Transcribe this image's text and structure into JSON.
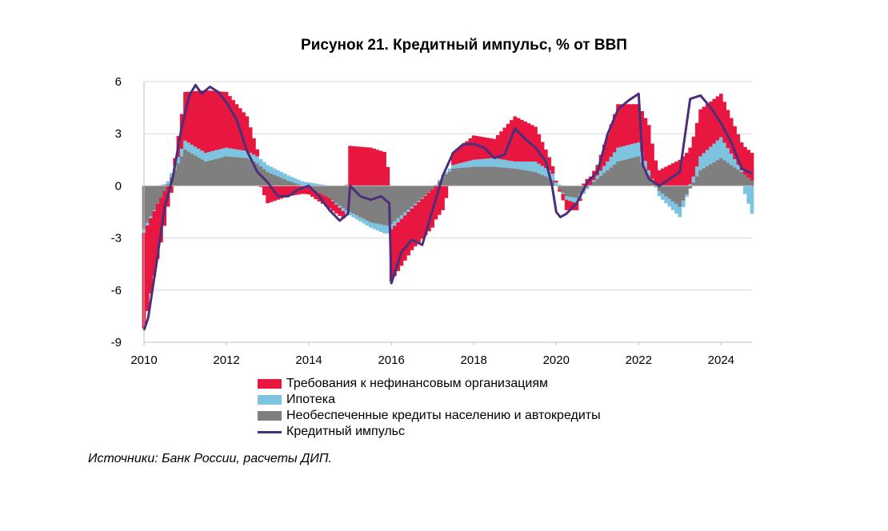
{
  "chart_data": {
    "type": "bar",
    "title": "Рисунок 21. Кредитный импульс, % от ВВП",
    "xlabel": "",
    "ylabel": "",
    "ylim": [
      -9,
      6
    ],
    "yticks": [
      "6",
      "3",
      "0",
      "-3",
      "-6",
      "-9"
    ],
    "xticks": [
      "2010",
      "2012",
      "2014",
      "2016",
      "2018",
      "2020",
      "2022",
      "2024"
    ],
    "x_range": [
      2010.0,
      2024.75
    ],
    "grid": "horizontal",
    "legend_position": "bottom",
    "colors": {
      "corporate": "#e8173f",
      "mortgage": "#7cc4e0",
      "unsecured": "#7f7f7f",
      "impulse": "#4b2f7a",
      "grid": "#d9d9d9"
    },
    "series": [
      {
        "name": "Требования к нефинансовым организациям",
        "kind": "bar",
        "x": [
          2010.0,
          2010.5,
          2011.0,
          2011.5,
          2012.0,
          2012.5,
          2012.75,
          2013.0,
          2013.5,
          2014.0,
          2014.5,
          2014.9,
          2015.0,
          2015.5,
          2015.9,
          2016.0,
          2016.5,
          2017.0,
          2017.25,
          2017.5,
          2018.0,
          2018.5,
          2019.0,
          2019.5,
          2019.9,
          2020.0,
          2020.25,
          2020.5,
          2020.75,
          2021.0,
          2021.5,
          2022.0,
          2022.25,
          2022.5,
          2023.0,
          2023.5,
          2024.0,
          2024.5,
          2024.75
        ],
        "values": [
          -5.5,
          -2.0,
          2.8,
          3.6,
          3.2,
          2.0,
          0.4,
          -1.0,
          -0.6,
          -0.4,
          -0.6,
          -0.4,
          2.3,
          2.2,
          1.9,
          -3.0,
          -2.4,
          -2.2,
          -1.4,
          0.7,
          1.4,
          1.1,
          2.6,
          2.0,
          0.5,
          0.1,
          -0.6,
          -0.4,
          0.4,
          0.6,
          2.5,
          2.2,
          2.6,
          0.9,
          1.5,
          2.7,
          2.5,
          1.6,
          1.6
        ]
      },
      {
        "name": "Ипотека",
        "kind": "bar",
        "x": [
          2010.0,
          2010.5,
          2011.0,
          2011.5,
          2012.0,
          2012.5,
          2012.75,
          2013.0,
          2013.5,
          2014.0,
          2014.5,
          2014.9,
          2015.0,
          2015.5,
          2015.9,
          2016.0,
          2016.5,
          2017.0,
          2017.25,
          2017.5,
          2018.0,
          2018.5,
          2019.0,
          2019.5,
          2019.9,
          2020.0,
          2020.25,
          2020.5,
          2020.75,
          2021.0,
          2021.5,
          2022.0,
          2022.25,
          2022.5,
          2023.0,
          2023.5,
          2024.0,
          2024.5,
          2024.75
        ],
        "values": [
          -0.2,
          0.1,
          0.5,
          0.5,
          0.5,
          0.4,
          0.4,
          0.4,
          0.3,
          0.2,
          0.0,
          -0.2,
          -0.2,
          -0.3,
          -0.5,
          -0.3,
          -0.1,
          0.0,
          0.1,
          0.2,
          0.4,
          0.5,
          0.4,
          0.6,
          0.4,
          0.2,
          -0.2,
          -0.3,
          -0.1,
          0.2,
          0.8,
          0.8,
          0.3,
          -0.3,
          -0.6,
          0.8,
          1.2,
          0.1,
          -1.6
        ]
      },
      {
        "name": "Необеспеченные кредиты населению и автокредиты",
        "kind": "bar",
        "x": [
          2010.0,
          2010.5,
          2011.0,
          2011.5,
          2012.0,
          2012.5,
          2012.75,
          2013.0,
          2013.5,
          2014.0,
          2014.5,
          2014.9,
          2015.0,
          2015.5,
          2015.9,
          2016.0,
          2016.5,
          2017.0,
          2017.25,
          2017.5,
          2018.0,
          2018.5,
          2019.0,
          2019.5,
          2019.9,
          2020.0,
          2020.25,
          2020.5,
          2020.75,
          2021.0,
          2021.5,
          2022.0,
          2022.25,
          2022.5,
          2023.0,
          2023.5,
          2024.0,
          2024.5,
          2024.75
        ],
        "values": [
          -2.5,
          -0.3,
          2.1,
          1.4,
          1.7,
          1.6,
          1.3,
          0.8,
          0.3,
          -0.1,
          -0.7,
          -1.4,
          -1.5,
          -2.1,
          -2.3,
          -2.2,
          -1.2,
          -0.2,
          0.5,
          1.0,
          1.1,
          1.1,
          1.0,
          0.8,
          0.4,
          0.0,
          -0.6,
          -0.7,
          -0.1,
          0.4,
          1.4,
          1.7,
          0.6,
          -0.3,
          -1.2,
          0.9,
          1.6,
          0.8,
          0.3
        ]
      },
      {
        "name": "Кредитный импульс",
        "kind": "line",
        "x": [
          2010.0,
          2010.1,
          2010.3,
          2010.5,
          2010.7,
          2010.9,
          2011.1,
          2011.25,
          2011.4,
          2011.6,
          2011.8,
          2012.0,
          2012.25,
          2012.5,
          2012.75,
          2013.0,
          2013.25,
          2013.5,
          2013.75,
          2014.0,
          2014.25,
          2014.5,
          2014.75,
          2014.95,
          2015.0,
          2015.25,
          2015.5,
          2015.75,
          2015.95,
          2016.0,
          2016.25,
          2016.5,
          2016.75,
          2017.0,
          2017.25,
          2017.5,
          2017.75,
          2018.0,
          2018.25,
          2018.5,
          2018.75,
          2019.0,
          2019.25,
          2019.5,
          2019.75,
          2019.9,
          2020.0,
          2020.1,
          2020.25,
          2020.5,
          2020.75,
          2021.0,
          2021.25,
          2021.5,
          2021.75,
          2022.0,
          2022.1,
          2022.25,
          2022.5,
          2022.75,
          2023.0,
          2023.25,
          2023.5,
          2023.75,
          2024.0,
          2024.25,
          2024.5,
          2024.75
        ],
        "values": [
          -8.3,
          -7.6,
          -4.5,
          -1.2,
          0.5,
          3.2,
          5.2,
          5.8,
          5.3,
          5.7,
          5.4,
          4.8,
          3.8,
          2.0,
          0.8,
          0.2,
          -0.6,
          -0.6,
          -0.2,
          0.0,
          -0.6,
          -1.4,
          -2.0,
          -1.6,
          0.0,
          -0.6,
          -0.8,
          -0.6,
          -1.0,
          -5.6,
          -3.8,
          -3.1,
          -3.4,
          -1.4,
          0.6,
          1.9,
          2.4,
          2.4,
          2.2,
          1.6,
          1.8,
          3.3,
          2.7,
          2.2,
          1.4,
          0.0,
          -1.5,
          -1.8,
          -1.6,
          -1.0,
          0.2,
          0.8,
          3.0,
          4.4,
          4.9,
          5.3,
          1.2,
          0.4,
          0.0,
          0.4,
          0.8,
          5.0,
          5.2,
          4.5,
          3.6,
          2.5,
          1.0,
          0.7
        ]
      }
    ]
  },
  "legend": {
    "items": [
      {
        "label": "Требования к нефинансовым организациям"
      },
      {
        "label": "Ипотека"
      },
      {
        "label": "Необеспеченные кредиты населению и автокредиты"
      },
      {
        "label": "Кредитный импульс"
      }
    ]
  },
  "source": "Источники: Банк России, расчеты ДИП."
}
